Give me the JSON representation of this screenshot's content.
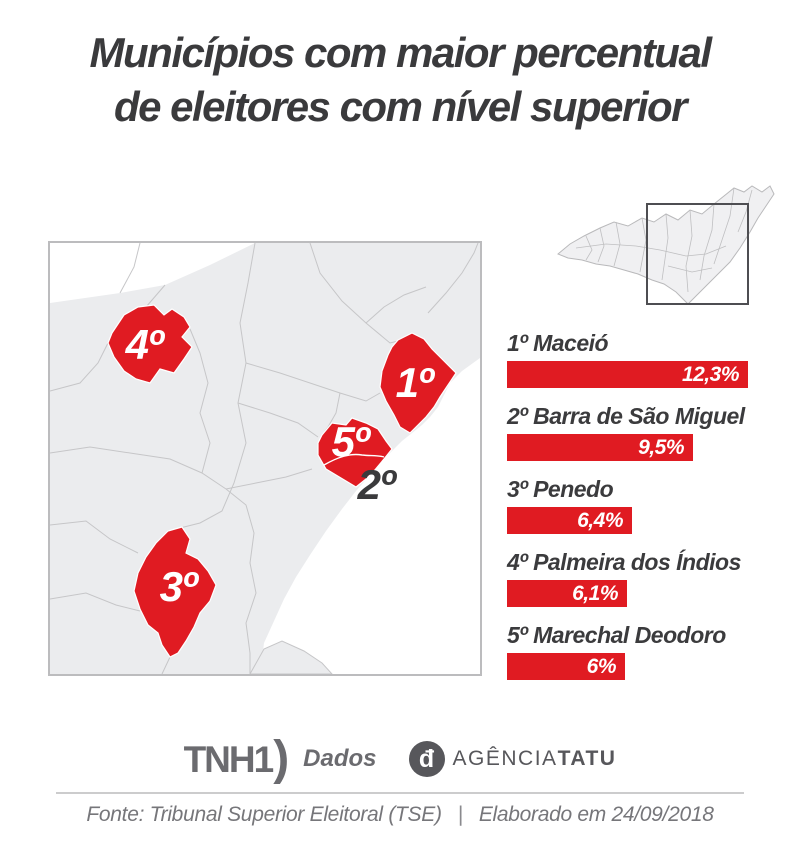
{
  "title": {
    "line1": "Municípios com maior percentual",
    "line2": "de eleitores com nível superior"
  },
  "map": {
    "label_maceio": "1º",
    "label_barra": "2º",
    "label_penedo": "3º",
    "label_palmeira": "4º",
    "label_marechal": "5º"
  },
  "ranking": {
    "items": [
      {
        "label": "1º Maceió",
        "value": 12.3,
        "value_label": "12,3%"
      },
      {
        "label": "2º Barra de São Miguel",
        "value": 9.5,
        "value_label": "9,5%"
      },
      {
        "label": "3º Penedo",
        "value": 6.4,
        "value_label": "6,4%"
      },
      {
        "label": "4º Palmeira dos Índios",
        "value": 6.1,
        "value_label": "6,1%"
      },
      {
        "label": "5º Marechal Deodoro",
        "value": 6,
        "value_label": "6%"
      }
    ]
  },
  "chart_data": {
    "type": "bar",
    "orientation": "horizontal",
    "title": "Municípios com maior percentual de eleitores com nível superior",
    "categories": [
      "Maceió",
      "Barra de São Miguel",
      "Penedo",
      "Palmeira dos Índios",
      "Marechal Deodoro"
    ],
    "ranks": [
      "1º",
      "2º",
      "3º",
      "4º",
      "5º"
    ],
    "values": [
      12.3,
      9.5,
      6.4,
      6.1,
      6.0
    ],
    "value_labels": [
      "12,3%",
      "9,5%",
      "6,4%",
      "6,1%",
      "6%"
    ],
    "unit": "%",
    "xlim": [
      0,
      12.3
    ],
    "bar_color": "#e01b22",
    "legend": "none",
    "source": "Fonte: Tribunal Superior Eleitoral (TSE)",
    "elaborated": "Elaborado em 24/09/2018"
  },
  "logos": {
    "tnh1_text": "TNH1",
    "tnh1_paren": ")",
    "tnh1_suffix": "Dados",
    "tatu_glyph": "đ",
    "tatu_name_regular": "AGÊNCIA",
    "tatu_name_bold": "TATU"
  },
  "footer": {
    "source": "Fonte: Tribunal Superior Eleitoral (TSE)",
    "separator": "|",
    "elaborated": "Elaborado em 24/09/2018"
  },
  "colors": {
    "highlight_red": "#e01b22",
    "dark_text": "#3a3a3c",
    "logo_gray": "#6b6b6f",
    "land_gray": "#ebecee",
    "border_gray": "#c6c6c8"
  }
}
